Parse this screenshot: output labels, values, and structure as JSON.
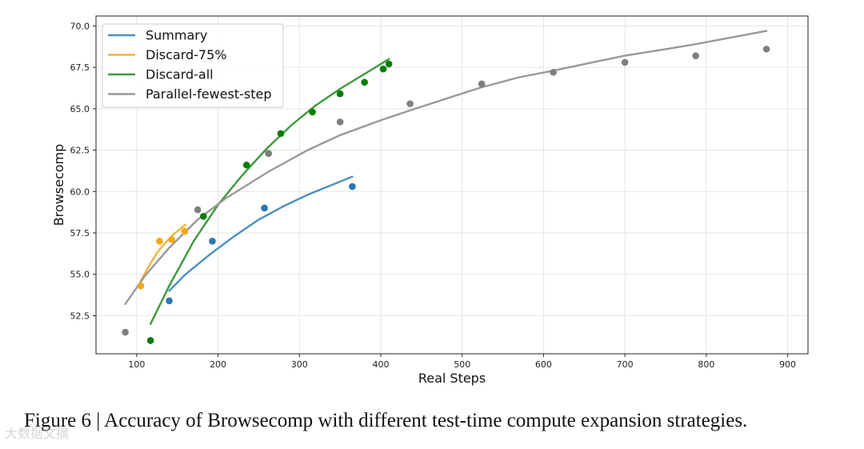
{
  "caption": "Figure 6 | Accuracy of Browsecomp with different test-time compute expansion strategies.",
  "watermark": "大数据文摘",
  "chart_data": {
    "type": "scatter",
    "title": "",
    "xlabel": "Real Steps",
    "ylabel": "Browsecomp",
    "xlim": [
      50,
      925
    ],
    "ylim": [
      50.2,
      70.6
    ],
    "xticks": [
      100,
      200,
      300,
      400,
      500,
      600,
      700,
      800,
      900
    ],
    "yticks": [
      52.5,
      55.0,
      57.5,
      60.0,
      62.5,
      65.0,
      67.5,
      70.0
    ],
    "grid": true,
    "legend_position": "top-left",
    "series": [
      {
        "name": "Summary",
        "color": "#2878b5",
        "line_color": "#4a90c2",
        "points": [
          [
            140,
            53.4
          ],
          [
            193,
            57.0
          ],
          [
            257,
            59.0
          ],
          [
            365,
            60.3
          ]
        ],
        "fit": [
          [
            140,
            54.0
          ],
          [
            160,
            55.0
          ],
          [
            190,
            56.2
          ],
          [
            220,
            57.3
          ],
          [
            250,
            58.3
          ],
          [
            280,
            59.1
          ],
          [
            310,
            59.8
          ],
          [
            340,
            60.4
          ],
          [
            365,
            60.9
          ]
        ]
      },
      {
        "name": "Discard-75%",
        "color": "#f5a516",
        "line_color": "#f7b23b",
        "points": [
          [
            105,
            54.3
          ],
          [
            128,
            57.0
          ],
          [
            143,
            57.1
          ],
          [
            159,
            57.6
          ]
        ],
        "fit": [
          [
            105,
            54.6
          ],
          [
            115,
            55.5
          ],
          [
            125,
            56.3
          ],
          [
            135,
            56.9
          ],
          [
            145,
            57.4
          ],
          [
            160,
            58.0
          ]
        ]
      },
      {
        "name": "Discard-all",
        "color": "#0a7d0a",
        "line_color": "#3c9a3c",
        "points": [
          [
            117,
            51.0
          ],
          [
            182,
            58.5
          ],
          [
            235,
            61.6
          ],
          [
            262,
            62.3
          ],
          [
            277,
            63.5
          ],
          [
            316,
            64.8
          ],
          [
            350,
            65.9
          ],
          [
            380,
            66.6
          ],
          [
            403,
            67.4
          ],
          [
            410,
            67.7
          ]
        ],
        "fit": [
          [
            117,
            52.0
          ],
          [
            140,
            54.3
          ],
          [
            170,
            57.0
          ],
          [
            200,
            59.2
          ],
          [
            230,
            61.0
          ],
          [
            260,
            62.6
          ],
          [
            290,
            64.0
          ],
          [
            320,
            65.2
          ],
          [
            350,
            66.2
          ],
          [
            380,
            67.1
          ],
          [
            410,
            68.0
          ]
        ]
      },
      {
        "name": "Parallel-fewest-step",
        "color": "#7f7f7f",
        "line_color": "#999999",
        "points": [
          [
            86,
            51.5
          ],
          [
            175,
            58.9
          ],
          [
            262,
            62.3
          ],
          [
            350,
            64.2
          ],
          [
            436,
            65.3
          ],
          [
            524,
            66.5
          ],
          [
            612,
            67.2
          ],
          [
            700,
            67.8
          ],
          [
            787,
            68.2
          ],
          [
            874,
            68.6
          ]
        ],
        "fit": [
          [
            86,
            53.2
          ],
          [
            110,
            54.9
          ],
          [
            140,
            56.6
          ],
          [
            175,
            58.3
          ],
          [
            210,
            59.6
          ],
          [
            262,
            61.2
          ],
          [
            310,
            62.5
          ],
          [
            350,
            63.4
          ],
          [
            400,
            64.3
          ],
          [
            436,
            64.9
          ],
          [
            480,
            65.6
          ],
          [
            524,
            66.3
          ],
          [
            570,
            66.9
          ],
          [
            612,
            67.3
          ],
          [
            660,
            67.8
          ],
          [
            700,
            68.2
          ],
          [
            750,
            68.6
          ],
          [
            787,
            68.9
          ],
          [
            830,
            69.3
          ],
          [
            874,
            69.7
          ]
        ]
      }
    ]
  }
}
